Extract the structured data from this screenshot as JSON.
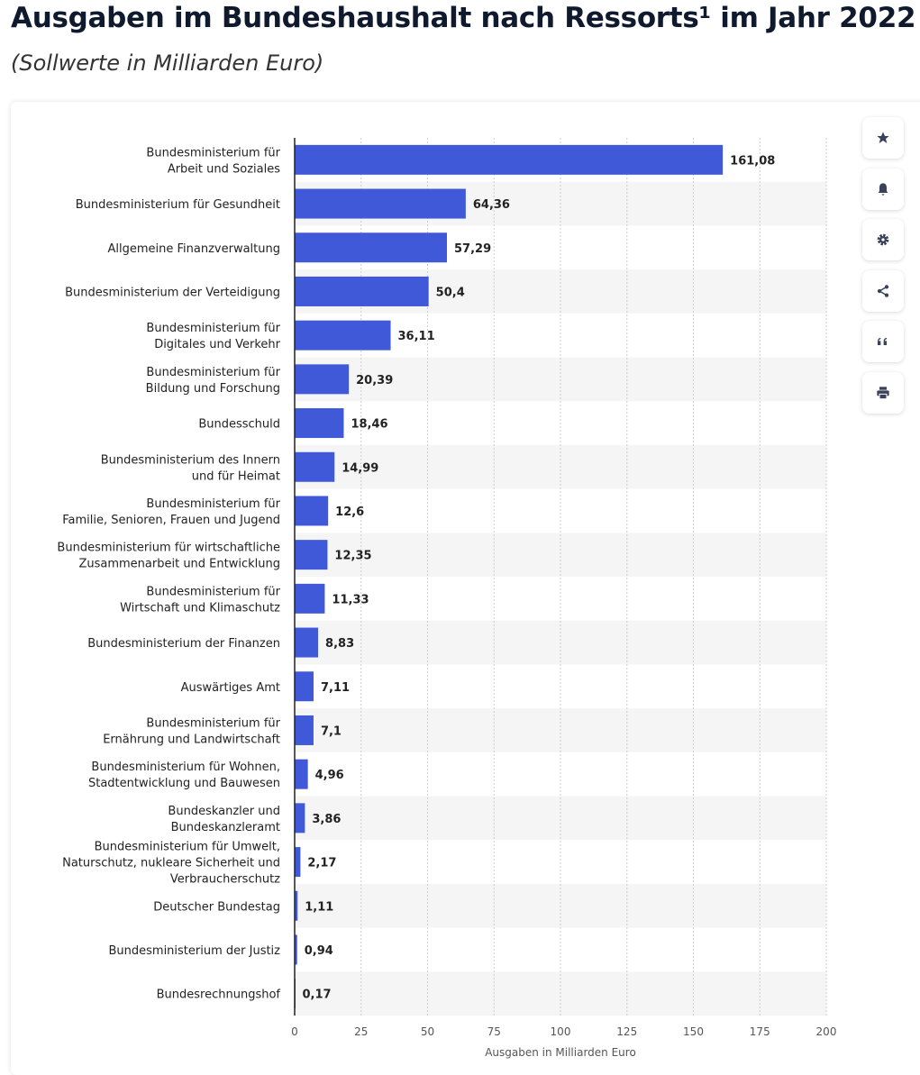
{
  "chart_data": {
    "type": "bar",
    "orientation": "horizontal",
    "title": "Ausgaben im Bundeshaushalt nach Ressorts¹ im Jahr 2022",
    "subtitle": "(Sollwerte in Milliarden Euro)",
    "xlabel": "Ausgaben in Milliarden Euro",
    "ylabel": "",
    "xlim": [
      0,
      200
    ],
    "ticks": [
      0,
      25,
      50,
      75,
      100,
      125,
      150,
      175,
      200
    ],
    "categories": [
      [
        "Bundesministerium für",
        "Arbeit und Soziales"
      ],
      [
        "Bundesministerium für Gesundheit"
      ],
      [
        "Allgemeine Finanzverwaltung"
      ],
      [
        "Bundesministerium der Verteidigung"
      ],
      [
        "Bundesministerium für",
        "Digitales und Verkehr"
      ],
      [
        "Bundesministerium für",
        "Bildung und Forschung"
      ],
      [
        "Bundesschuld"
      ],
      [
        "Bundesministerium des Innern",
        "und für Heimat"
      ],
      [
        "Bundesministerium für",
        "Familie, Senioren, Frauen und Jugend"
      ],
      [
        "Bundesministerium für wirtschaftliche",
        "Zusammenarbeit und Entwicklung"
      ],
      [
        "Bundesministerium für",
        "Wirtschaft und Klimaschutz"
      ],
      [
        "Bundesministerium der Finanzen"
      ],
      [
        "Auswärtiges Amt"
      ],
      [
        "Bundesministerium für",
        "Ernährung und Landwirtschaft"
      ],
      [
        "Bundesministerium für Wohnen,",
        "Stadtentwicklung und Bauwesen"
      ],
      [
        "Bundeskanzler und",
        "Bundeskanzleramt"
      ],
      [
        "Bundesministerium für Umwelt,",
        "Naturschutz, nukleare Sicherheit und",
        "Verbraucherschutz"
      ],
      [
        "Deutscher Bundestag"
      ],
      [
        "Bundesministerium der Justiz"
      ],
      [
        "Bundesrechnungshof"
      ]
    ],
    "values": [
      161.08,
      64.36,
      57.29,
      50.4,
      36.11,
      20.39,
      18.46,
      14.99,
      12.6,
      12.35,
      11.33,
      8.83,
      7.11,
      7.1,
      4.96,
      3.86,
      2.17,
      1.11,
      0.94,
      0.17
    ],
    "value_labels": [
      "161,08",
      "64,36",
      "57,29",
      "50,4",
      "36,11",
      "20,39",
      "18,46",
      "14,99",
      "12,6",
      "12,35",
      "11,33",
      "8,83",
      "7,11",
      "7,1",
      "4,96",
      "3,86",
      "2,17",
      "1,11",
      "0,94",
      "0,17"
    ],
    "bar_color": "#4059d8",
    "grid": true
  },
  "tools": [
    {
      "icon": "star-icon"
    },
    {
      "icon": "bell-icon"
    },
    {
      "icon": "gear-icon"
    },
    {
      "icon": "share-icon"
    },
    {
      "icon": "quote-icon"
    },
    {
      "icon": "print-icon"
    }
  ]
}
